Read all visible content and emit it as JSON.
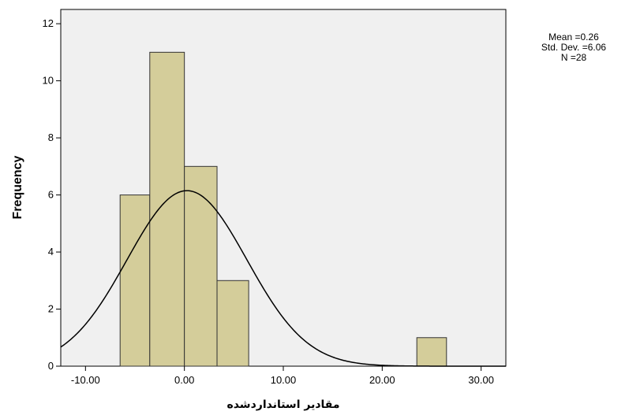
{
  "chart_data": {
    "type": "bar",
    "subtype": "histogram",
    "xlabel": "مقادیر استانداردشده",
    "ylabel": "Frequency",
    "xlim": [
      -12.5,
      32.5
    ],
    "ylim": [
      0,
      12.5
    ],
    "xticks": [
      -10,
      0,
      10,
      20,
      30
    ],
    "xtick_labels": [
      "-10.00",
      "0.00",
      "10.00",
      "20.00",
      "30.00"
    ],
    "yticks": [
      0,
      2,
      4,
      6,
      8,
      10,
      12
    ],
    "ytick_labels": [
      "0",
      "2",
      "4",
      "6",
      "8",
      "10",
      "12"
    ],
    "bins": [
      {
        "start": -6.5,
        "end": -3.5,
        "count": 6
      },
      {
        "start": -3.5,
        "end": 0.0,
        "count": 11
      },
      {
        "start": 0.0,
        "end": 3.3,
        "count": 7
      },
      {
        "start": 3.3,
        "end": 6.5,
        "count": 3
      },
      {
        "start": 23.5,
        "end": 26.5,
        "count": 1
      }
    ],
    "normal_curve": {
      "mean": 0.26,
      "sd": 6.06,
      "peak": 6.15
    },
    "stats": {
      "mean_label": "Mean =0.26",
      "sd_label": "Std. Dev. =6.06",
      "n_label": "N =28"
    },
    "grid": false,
    "colors": {
      "bar_fill": "#d4cd9a",
      "bar_stroke": "#333333",
      "plot_bg": "#f0f0f0",
      "curve": "#000000"
    }
  }
}
